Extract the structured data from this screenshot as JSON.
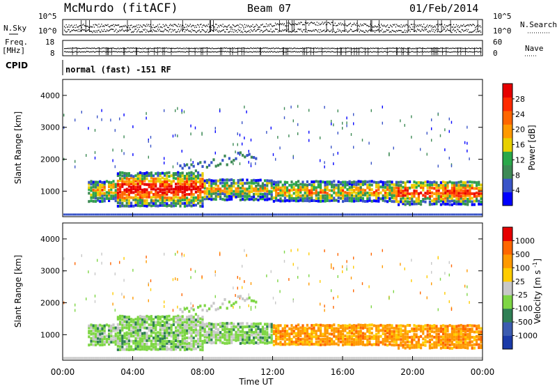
{
  "header": {
    "title": "McMurdo (fitACF)",
    "beam": "Beam 07",
    "date": "01/Feb/2014"
  },
  "left_labels": {
    "nsky": "N.Sky",
    "freq_top": "Freq.",
    "freq_unit": "[MHz]",
    "cpid": "CPID"
  },
  "right_labels": {
    "nsearch": "N.Search",
    "nave": "Nave"
  },
  "strip_ticks": {
    "noise_left": [
      "10^5",
      "10^0"
    ],
    "noise_right": [
      "10^5",
      "10^0"
    ],
    "freq_left": [
      "18",
      "8"
    ],
    "nave_right": [
      "60",
      "0"
    ]
  },
  "mode_text": "normal (fast) -151 RF",
  "colors": {
    "power": [
      "#0000ff",
      "#3a55c8",
      "#3d8a55",
      "#2aa84a",
      "#e8d000",
      "#ff9900",
      "#ff6600",
      "#ff2a00",
      "#e60000"
    ],
    "velocity": [
      "#1a3aa8",
      "#3b5bb0",
      "#2f7f55",
      "#7ed645",
      "#c8c8c8",
      "#ffcc00",
      "#ff9900",
      "#ff6600",
      "#e60000"
    ]
  },
  "chart_data": [
    {
      "type": "heatmap",
      "ylabel": "Slant Range [km]",
      "xlabel": "Time UT",
      "xlim": [
        0,
        24
      ],
      "ylim": [
        200,
        4500
      ],
      "x_ticks": [
        "00:00",
        "04:00",
        "08:00",
        "12:00",
        "16:00",
        "20:00",
        "00:00"
      ],
      "y_ticks": [
        "1000",
        "2000",
        "3000",
        "4000"
      ],
      "colorbar": {
        "label": "Power [dB]",
        "ticks": [
          "4",
          "8",
          "12",
          "16",
          "20",
          "24",
          "28"
        ]
      }
    },
    {
      "type": "heatmap",
      "ylabel": "Slant Range [km]",
      "xlabel": "Time UT",
      "xlim": [
        0,
        24
      ],
      "ylim": [
        200,
        4500
      ],
      "x_ticks": [
        "00:00",
        "04:00",
        "08:00",
        "12:00",
        "16:00",
        "20:00",
        "00:00"
      ],
      "y_ticks": [
        "1000",
        "2000",
        "3000",
        "4000"
      ],
      "colorbar": {
        "label": "Velocity [m s^-1]",
        "ticks": [
          "1000",
          "500",
          "100",
          "25",
          "-25",
          "-100",
          "-500",
          "-1000"
        ]
      }
    }
  ]
}
